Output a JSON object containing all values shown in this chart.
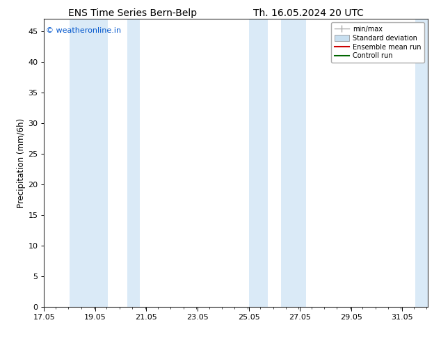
{
  "title_left": "ENS Time Series Bern-Belp",
  "title_right": "Th. 16.05.2024 20 UTC",
  "ylabel": "Precipitation (mm/6h)",
  "watermark": "© weatheronline.in",
  "watermark_color": "#0055cc",
  "xmin": 17.05,
  "xmax": 32.05,
  "ymin": 0,
  "ymax": 47,
  "yticks": [
    0,
    5,
    10,
    15,
    20,
    25,
    30,
    35,
    40,
    45
  ],
  "xtick_major_positions": [
    17.05,
    19.05,
    21.05,
    23.05,
    25.05,
    27.05,
    29.05,
    31.05
  ],
  "xtick_labels": [
    "17.05",
    "19.05",
    "21.05",
    "23.05",
    "25.05",
    "27.05",
    "29.05",
    "31.05"
  ],
  "shaded_bands": [
    {
      "xstart": 18.05,
      "xend": 19.55,
      "color": "#daeaf7"
    },
    {
      "xstart": 20.3,
      "xend": 20.8,
      "color": "#daeaf7"
    },
    {
      "xstart": 25.05,
      "xend": 25.8,
      "color": "#daeaf7"
    },
    {
      "xstart": 26.3,
      "xend": 27.3,
      "color": "#daeaf7"
    },
    {
      "xstart": 31.55,
      "xend": 32.1,
      "color": "#daeaf7"
    }
  ],
  "legend_items": [
    {
      "label": "min/max",
      "type": "minmax",
      "color": "#aaaaaa"
    },
    {
      "label": "Standard deviation",
      "type": "patch",
      "color": "#c8dff0"
    },
    {
      "label": "Ensemble mean run",
      "type": "line",
      "color": "#cc0000",
      "lw": 1.5
    },
    {
      "label": "Controll run",
      "type": "line",
      "color": "#006600",
      "lw": 1.5
    }
  ],
  "bg_color": "#ffffff",
  "title_fontsize": 10,
  "tick_fontsize": 8,
  "ylabel_fontsize": 8.5
}
